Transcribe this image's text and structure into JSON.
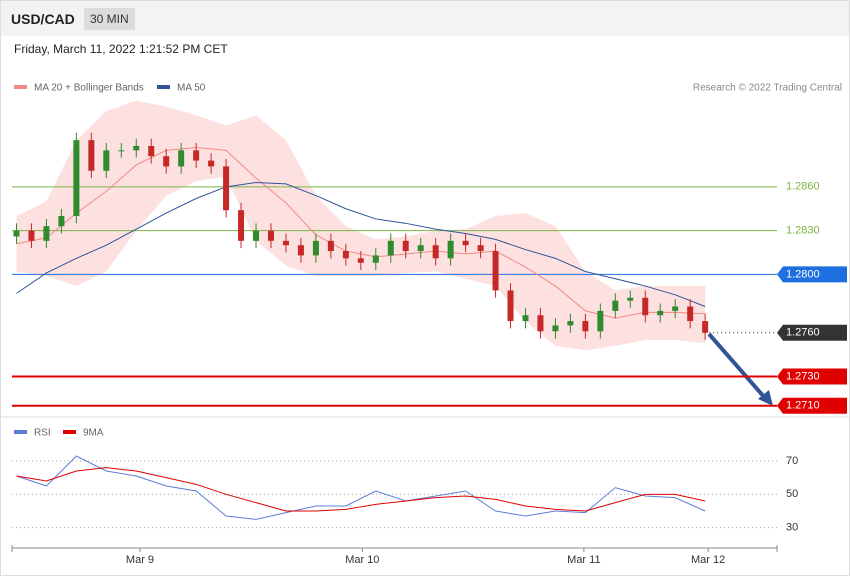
{
  "header": {
    "symbol": "USD/CAD",
    "timeframe": "30 MIN",
    "timestamp": "Friday, March 11, 2022 1:21:52 PM CET"
  },
  "chart_data": [
    {
      "type": "candlestick",
      "source": "Research © 2022 Trading Central",
      "xlim": [
        -0.3,
        50.8
      ],
      "ylim": [
        1.2705,
        1.2925
      ],
      "up_color": "#2e8b2e",
      "down_color": "#c62828",
      "candles": {
        "x": [
          0,
          1,
          2,
          3,
          4,
          5,
          6,
          7,
          8,
          9,
          10,
          11,
          12,
          13,
          14,
          15,
          16,
          17,
          18,
          19,
          20,
          21,
          22,
          23,
          24,
          25,
          26,
          27,
          28,
          29,
          30,
          31,
          32,
          33,
          34,
          35,
          36,
          37,
          38,
          39,
          40,
          41,
          42,
          43,
          44,
          45,
          46
        ],
        "open": [
          1.2826,
          1.283,
          1.2823,
          1.2833,
          1.284,
          1.2892,
          1.2871,
          1.2885,
          1.2885,
          1.2888,
          1.2881,
          1.2874,
          1.2885,
          1.2878,
          1.2874,
          1.2844,
          1.2823,
          1.283,
          1.2823,
          1.282,
          1.2813,
          1.2823,
          1.2816,
          1.2811,
          1.2808,
          1.2813,
          1.2823,
          1.2816,
          1.282,
          1.2811,
          1.2823,
          1.282,
          1.2816,
          1.2789,
          1.2768,
          1.2772,
          1.2761,
          1.2765,
          1.2768,
          1.2761,
          1.2775,
          1.2782,
          1.2784,
          1.2772,
          1.2775,
          1.2778,
          1.2768
        ],
        "high": [
          1.2835,
          1.2835,
          1.2838,
          1.2845,
          1.2897,
          1.2897,
          1.289,
          1.289,
          1.2893,
          1.2893,
          1.2886,
          1.289,
          1.289,
          1.2883,
          1.2879,
          1.2849,
          1.2835,
          1.2835,
          1.2828,
          1.2825,
          1.2828,
          1.2828,
          1.2821,
          1.2816,
          1.2818,
          1.2828,
          1.2828,
          1.2825,
          1.2825,
          1.2828,
          1.2828,
          1.2825,
          1.2821,
          1.2794,
          1.2777,
          1.2777,
          1.277,
          1.2773,
          1.2773,
          1.278,
          1.2787,
          1.2789,
          1.2789,
          1.278,
          1.2783,
          1.2783,
          1.2773
        ],
        "low": [
          1.2821,
          1.2818,
          1.2818,
          1.2828,
          1.2835,
          1.2866,
          1.2866,
          1.288,
          1.288,
          1.2876,
          1.2869,
          1.2869,
          1.2873,
          1.2869,
          1.2839,
          1.2818,
          1.2818,
          1.2818,
          1.2815,
          1.2808,
          1.2808,
          1.2811,
          1.2806,
          1.2803,
          1.2803,
          1.2808,
          1.2811,
          1.2811,
          1.2806,
          1.2806,
          1.2815,
          1.2811,
          1.2784,
          1.2763,
          1.2763,
          1.2756,
          1.2756,
          1.276,
          1.2756,
          1.2756,
          1.277,
          1.2777,
          1.2767,
          1.2767,
          1.277,
          1.2763,
          1.2755
        ],
        "close": [
          1.283,
          1.2823,
          1.2833,
          1.284,
          1.2892,
          1.2871,
          1.2885,
          1.2885,
          1.2888,
          1.2881,
          1.2874,
          1.2885,
          1.2878,
          1.2874,
          1.2844,
          1.2823,
          1.283,
          1.2823,
          1.282,
          1.2813,
          1.2823,
          1.2816,
          1.2811,
          1.2808,
          1.2813,
          1.2823,
          1.2816,
          1.282,
          1.2811,
          1.2823,
          1.282,
          1.2816,
          1.2789,
          1.2768,
          1.2772,
          1.2761,
          1.2765,
          1.2768,
          1.2761,
          1.2775,
          1.2782,
          1.2784,
          1.2772,
          1.2775,
          1.2778,
          1.2768,
          1.276
        ]
      },
      "series": [
        {
          "name": "MA 20 + Bollinger Bands",
          "color": "#f28b82",
          "band_color": "#fde0e0",
          "x": [
            0,
            2,
            4,
            6,
            8,
            10,
            12,
            14,
            16,
            18,
            20,
            22,
            24,
            26,
            28,
            30,
            32,
            34,
            36,
            38,
            40,
            42,
            44,
            46
          ],
          "values": [
            1.2821,
            1.2825,
            1.2842,
            1.2857,
            1.2875,
            1.2885,
            1.2887,
            1.2885,
            1.2866,
            1.2849,
            1.2827,
            1.2816,
            1.2812,
            1.2814,
            1.2816,
            1.2814,
            1.2816,
            1.2805,
            1.2792,
            1.2775,
            1.277,
            1.2774,
            1.2774,
            1.2773
          ],
          "upper": [
            1.284,
            1.285,
            1.2892,
            1.2912,
            1.2919,
            1.2915,
            1.2909,
            1.2902,
            1.2909,
            1.2892,
            1.2854,
            1.2833,
            1.2824,
            1.2826,
            1.283,
            1.2831,
            1.284,
            1.2842,
            1.2833,
            1.2802,
            1.2789,
            1.2792,
            1.2792,
            1.2792
          ],
          "lower": [
            1.2802,
            1.2799,
            1.2792,
            1.2802,
            1.283,
            1.2854,
            1.2864,
            1.2867,
            1.2823,
            1.2806,
            1.2799,
            1.2799,
            1.2799,
            1.2801,
            1.2802,
            1.2797,
            1.2792,
            1.2768,
            1.2751,
            1.2748,
            1.2751,
            1.2755,
            1.2755,
            1.2753
          ]
        },
        {
          "name": "MA 50",
          "color": "#2f5597",
          "x": [
            0,
            2,
            4,
            6,
            8,
            10,
            12,
            14,
            16,
            18,
            20,
            22,
            24,
            26,
            28,
            30,
            32,
            34,
            36,
            38,
            40,
            42,
            44,
            46
          ],
          "values": [
            1.2787,
            1.2801,
            1.2811,
            1.282,
            1.2831,
            1.2842,
            1.2852,
            1.286,
            1.2863,
            1.2862,
            1.2854,
            1.2845,
            1.2838,
            1.2835,
            1.2831,
            1.2828,
            1.2824,
            1.2817,
            1.2811,
            1.2802,
            1.2797,
            1.2792,
            1.2786,
            1.2778
          ]
        }
      ],
      "levels": [
        {
          "value": 1.286,
          "label": "1.2860",
          "color": "#7cb342",
          "style": "line"
        },
        {
          "value": 1.283,
          "label": "1.2830",
          "color": "#7cb342",
          "style": "line"
        },
        {
          "value": 1.28,
          "label": "1.2800",
          "color": "#1e6fe0",
          "style": "box"
        },
        {
          "value": 1.276,
          "label": "1.2760",
          "color": "#333333",
          "style": "current"
        },
        {
          "value": 1.273,
          "label": "1.2730",
          "color": "#e00000",
          "style": "box"
        },
        {
          "value": 1.271,
          "label": "1.2710",
          "color": "#e00000",
          "style": "box"
        }
      ]
    },
    {
      "type": "line",
      "xlim": [
        -0.3,
        50.8
      ],
      "ylim": [
        22,
        76
      ],
      "yticks": [
        30,
        50,
        70
      ],
      "grid": true,
      "xticks": [
        {
          "value": 8.25,
          "label": "Mar 9"
        },
        {
          "value": 23.1,
          "label": "Mar 10"
        },
        {
          "value": 37.9,
          "label": "Mar 11"
        },
        {
          "value": 46.2,
          "label": "Mar 12"
        }
      ],
      "series": [
        {
          "name": "RSI",
          "color": "#5b7fd6",
          "x": [
            0,
            2,
            4,
            6,
            8,
            10,
            12,
            14,
            16,
            18,
            20,
            22,
            24,
            26,
            28,
            30,
            32,
            34,
            36,
            38,
            40,
            42,
            44,
            46
          ],
          "values": [
            61,
            55,
            73,
            64,
            61,
            55,
            52,
            37,
            35,
            39,
            43,
            43,
            52,
            46,
            49,
            52,
            40,
            37,
            40,
            39,
            54,
            49,
            48,
            40
          ]
        },
        {
          "name": "9MA",
          "color": "#e00000",
          "x": [
            0,
            2,
            4,
            6,
            8,
            10,
            12,
            14,
            16,
            18,
            20,
            22,
            24,
            26,
            28,
            30,
            32,
            34,
            36,
            38,
            40,
            42,
            44,
            46
          ],
          "values": [
            61,
            58,
            64,
            66,
            64,
            60,
            56,
            50,
            45,
            40,
            40,
            41,
            44,
            46,
            48,
            49,
            47,
            43,
            41,
            40,
            45,
            50,
            50,
            46
          ]
        }
      ]
    }
  ]
}
